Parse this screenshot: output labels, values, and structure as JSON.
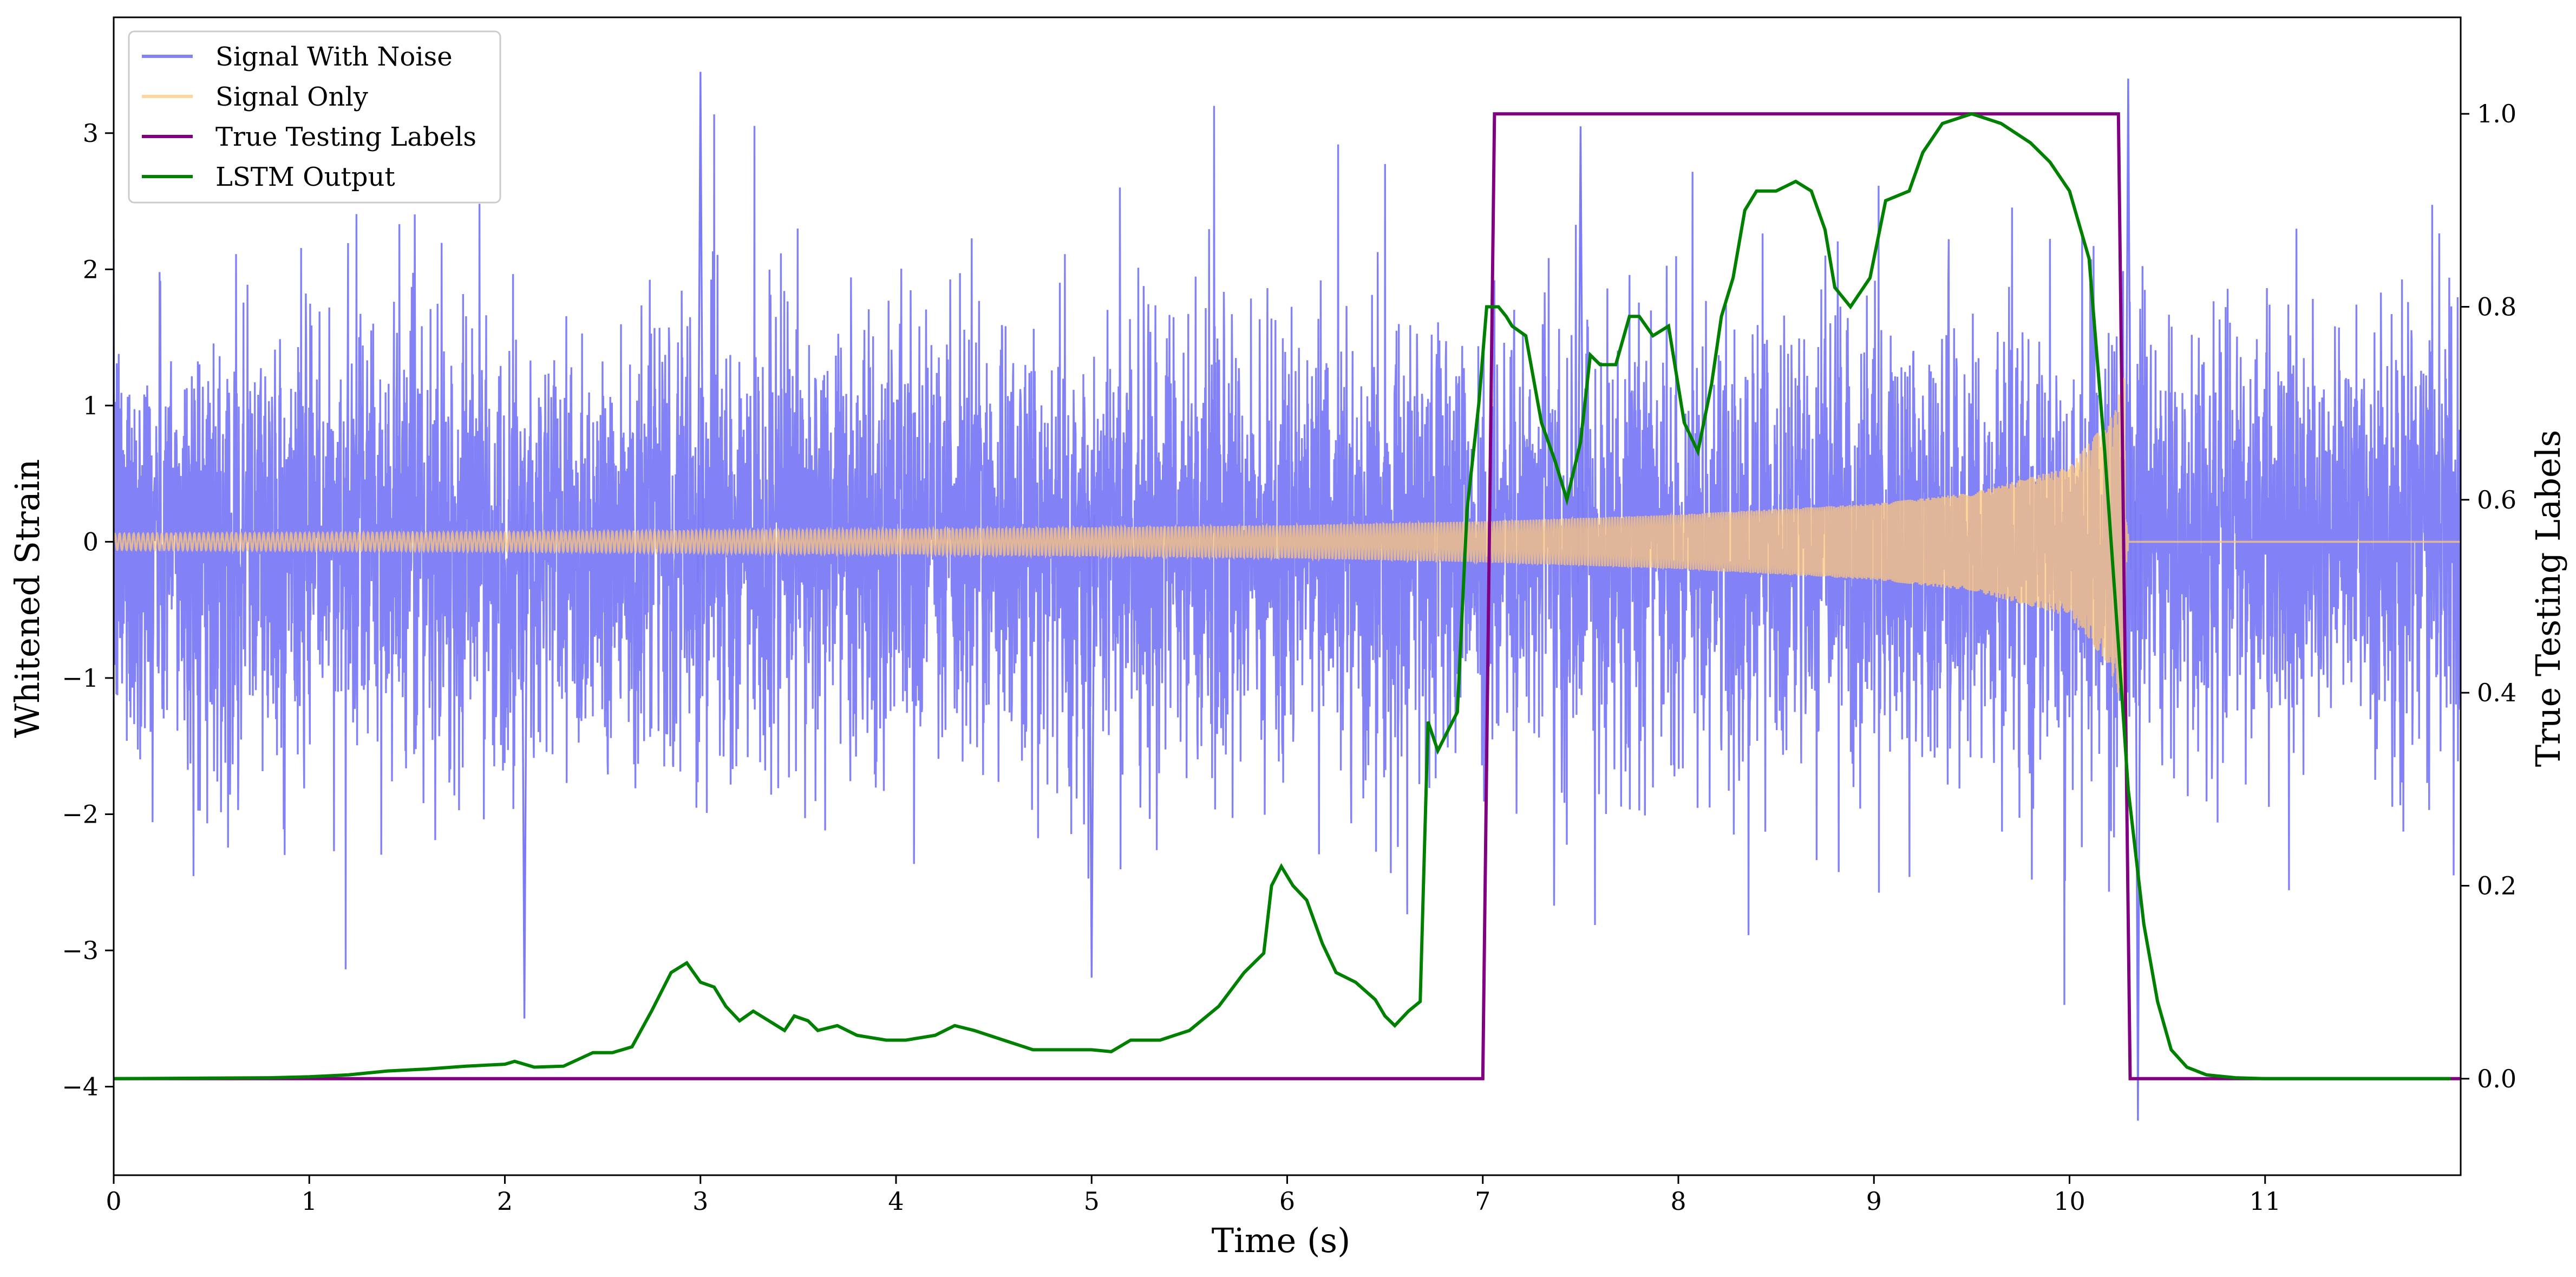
{
  "chart_data": {
    "type": "line",
    "title": "",
    "xlabel": "Time (s)",
    "ylabel": "Whitened Strain",
    "y2label": "True Testing Labels",
    "xlim": [
      0,
      12
    ],
    "ylim": [
      -4.65,
      3.85
    ],
    "y2lim": [
      -0.1,
      1.1
    ],
    "x_ticks": [
      0,
      1,
      2,
      3,
      4,
      5,
      6,
      7,
      8,
      9,
      10,
      11
    ],
    "y_ticks": [
      -4,
      -3,
      -2,
      -1,
      0,
      1,
      2,
      3
    ],
    "y2_ticks": [
      0.0,
      0.2,
      0.4,
      0.6,
      0.8,
      1.0
    ],
    "x_tick_labels": [
      "0",
      "1",
      "2",
      "3",
      "4",
      "5",
      "6",
      "7",
      "8",
      "9",
      "10",
      "11"
    ],
    "y_tick_labels": [
      "−4",
      "−3",
      "−2",
      "−1",
      "0",
      "1",
      "2",
      "3"
    ],
    "y2_tick_labels": [
      "0.0",
      "0.2",
      "0.4",
      "0.6",
      "0.8",
      "1.0"
    ],
    "grid": false,
    "legend_position": "top-left",
    "series": [
      {
        "name": "Signal With Noise",
        "axis": "left",
        "color": "#7b7bf5",
        "description": "dense noisy strain, std about 0.8, peaks to about 3.45 and -4.25",
        "x_range": [
          0,
          12
        ],
        "highlight_points": [
          [
            3.0,
            3.45
          ],
          [
            10.3,
            3.4
          ],
          [
            10.35,
            -4.25
          ],
          [
            2.1,
            -3.5
          ],
          [
            5.0,
            -3.2
          ],
          [
            7.5,
            3.05
          ]
        ]
      },
      {
        "name": "Signal Only",
        "axis": "left",
        "color": "#fdc77a",
        "description": "chirp with growing amplitude until merger, then zero",
        "amplitude_envelope": [
          [
            0,
            0.06
          ],
          [
            2,
            0.07
          ],
          [
            4,
            0.09
          ],
          [
            6,
            0.12
          ],
          [
            7,
            0.15
          ],
          [
            8,
            0.2
          ],
          [
            9,
            0.28
          ],
          [
            9.5,
            0.36
          ],
          [
            10,
            0.55
          ],
          [
            10.2,
            0.9
          ],
          [
            10.28,
            1.25
          ],
          [
            10.3,
            0.0
          ]
        ],
        "merger_time": 10.3
      },
      {
        "name": "True Testing Labels",
        "axis": "right",
        "color": "#800080",
        "x": [
          0,
          7.0,
          7.06,
          10.25,
          10.31,
          12
        ],
        "y": [
          0,
          0,
          1,
          1,
          0,
          0
        ]
      },
      {
        "name": "LSTM Output",
        "axis": "right",
        "color": "#008000",
        "x": [
          0,
          0.8,
          1.0,
          1.2,
          1.4,
          1.6,
          1.8,
          2.0,
          2.05,
          2.15,
          2.3,
          2.45,
          2.55,
          2.65,
          2.75,
          2.85,
          2.93,
          3.0,
          3.07,
          3.13,
          3.2,
          3.27,
          3.35,
          3.43,
          3.48,
          3.55,
          3.6,
          3.7,
          3.8,
          3.95,
          4.05,
          4.2,
          4.3,
          4.4,
          4.55,
          4.7,
          4.85,
          5.0,
          5.1,
          5.2,
          5.35,
          5.5,
          5.65,
          5.78,
          5.88,
          5.92,
          5.97,
          6.03,
          6.1,
          6.18,
          6.25,
          6.35,
          6.45,
          6.5,
          6.55,
          6.62,
          6.68,
          6.72,
          6.77,
          6.82,
          6.87,
          6.92,
          6.98,
          7.02,
          7.08,
          7.12,
          7.15,
          7.22,
          7.3,
          7.37,
          7.43,
          7.5,
          7.55,
          7.6,
          7.68,
          7.75,
          7.8,
          7.87,
          7.95,
          8.03,
          8.1,
          8.17,
          8.22,
          8.28,
          8.34,
          8.4,
          8.5,
          8.6,
          8.68,
          8.75,
          8.8,
          8.88,
          8.98,
          9.06,
          9.18,
          9.25,
          9.35,
          9.5,
          9.65,
          9.8,
          9.9,
          10.0,
          10.1,
          10.18,
          10.25,
          10.3,
          10.38,
          10.45,
          10.52,
          10.6,
          10.7,
          10.85,
          11.0,
          11.5,
          11.95
        ],
        "y": [
          0.0,
          0.001,
          0.002,
          0.004,
          0.008,
          0.01,
          0.013,
          0.015,
          0.018,
          0.012,
          0.013,
          0.027,
          0.027,
          0.033,
          0.07,
          0.11,
          0.12,
          0.1,
          0.095,
          0.075,
          0.06,
          0.07,
          0.06,
          0.05,
          0.065,
          0.06,
          0.05,
          0.055,
          0.045,
          0.04,
          0.04,
          0.045,
          0.055,
          0.05,
          0.04,
          0.03,
          0.03,
          0.03,
          0.028,
          0.04,
          0.04,
          0.05,
          0.075,
          0.11,
          0.13,
          0.2,
          0.22,
          0.2,
          0.185,
          0.14,
          0.11,
          0.1,
          0.082,
          0.065,
          0.055,
          0.07,
          0.08,
          0.37,
          0.34,
          0.36,
          0.38,
          0.59,
          0.7,
          0.8,
          0.8,
          0.79,
          0.78,
          0.77,
          0.68,
          0.64,
          0.6,
          0.66,
          0.75,
          0.74,
          0.74,
          0.79,
          0.79,
          0.77,
          0.78,
          0.68,
          0.65,
          0.72,
          0.79,
          0.83,
          0.9,
          0.92,
          0.92,
          0.93,
          0.92,
          0.88,
          0.82,
          0.8,
          0.83,
          0.91,
          0.92,
          0.96,
          0.99,
          1.0,
          0.99,
          0.97,
          0.95,
          0.92,
          0.85,
          0.65,
          0.45,
          0.3,
          0.16,
          0.08,
          0.03,
          0.012,
          0.004,
          0.001,
          0.0,
          0.0,
          0.0
        ]
      }
    ]
  }
}
